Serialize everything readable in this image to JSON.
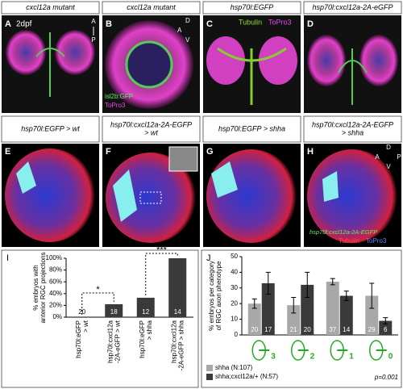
{
  "panels": [
    {
      "label": "A",
      "header": [
        "cxcl12a mutant"
      ],
      "texts": [
        "2dpf",
        "A",
        "P"
      ]
    },
    {
      "label": "B",
      "header": [
        "cxcl12a mutant"
      ],
      "texts": [
        "D",
        "A",
        "V",
        "isl2b:GFP",
        "ToPro3"
      ]
    },
    {
      "label": "C",
      "header": [
        "hsp70l:EGFP"
      ],
      "texts": [
        "Tubulin",
        "ToPro3"
      ]
    },
    {
      "label": "D",
      "header": [
        "hsp70l:cxcl12a-2A-eGFP"
      ],
      "texts": []
    },
    {
      "label": "E",
      "header": [
        "hsp70l:EGFP > wt"
      ],
      "texts": []
    },
    {
      "label": "F",
      "header": [
        "hsp70l:cxcl12a-2A-EGFP",
        "> wt"
      ],
      "texts": []
    },
    {
      "label": "G",
      "header": [
        "hsp70l:EGFP > shha"
      ],
      "texts": []
    },
    {
      "label": "H",
      "header": [
        "hsp70l:cxcl12a-2A-EGFP",
        "> shha"
      ],
      "texts": [
        "D",
        "A",
        "P",
        "V",
        "hsp70l:cxcl12a-2A-EGFP",
        "Tubulin",
        "ToPro3"
      ]
    }
  ],
  "chart_data": [
    {
      "type": "bar",
      "label": "I",
      "ylabel": [
        "% embryos with",
        "anterior RGC projections"
      ],
      "categories": [
        [
          "hsp70l:eGFP",
          "> wt"
        ],
        [
          "hsp70l:cxcl12a",
          "-2A-eGFP > wt"
        ],
        [
          "hsp70l:eGFP",
          "> shha"
        ],
        [
          "hsp70l:cxcl12a",
          "-2A-eGFP > shha"
        ]
      ],
      "values": [
        0,
        22,
        33,
        100
      ],
      "bar_labels": [
        20,
        18,
        12,
        14
      ],
      "color": "#3a3a3a",
      "ylim": [
        0,
        100
      ],
      "yticks": [
        {
          "value": 0,
          "label": "0%"
        },
        {
          "value": 20,
          "label": "20%"
        },
        {
          "value": 40,
          "label": "40%"
        },
        {
          "value": 60,
          "label": "60%"
        },
        {
          "value": 80,
          "label": "80%"
        },
        {
          "value": 100,
          "label": "100%"
        }
      ],
      "significance": [
        "*",
        "***"
      ]
    },
    {
      "type": "grouped_bar",
      "label": "J",
      "ylabel": [
        "% embryos per category",
        "of RGC axon phenotype"
      ],
      "categories": [
        "3",
        "2",
        "1",
        "0"
      ],
      "series": [
        {
          "name": "shha (N:107)",
          "color": "#a8a8a8",
          "values": [
            20,
            19,
            34,
            25
          ],
          "errors": [
            3,
            5,
            2,
            8
          ],
          "bar_labels": [
            20,
            21,
            37,
            29
          ]
        },
        {
          "name": "shha;cxcl12a/+ (N:57)",
          "color": "#3a3a3a",
          "values": [
            33,
            32,
            25,
            9
          ],
          "errors": [
            7,
            8,
            3,
            2
          ],
          "bar_labels": [
            17,
            20,
            14,
            6
          ]
        }
      ],
      "ylim": [
        0,
        50
      ],
      "yticks": [
        0,
        10,
        20,
        30,
        40,
        50
      ],
      "note": "p=0.001"
    }
  ]
}
